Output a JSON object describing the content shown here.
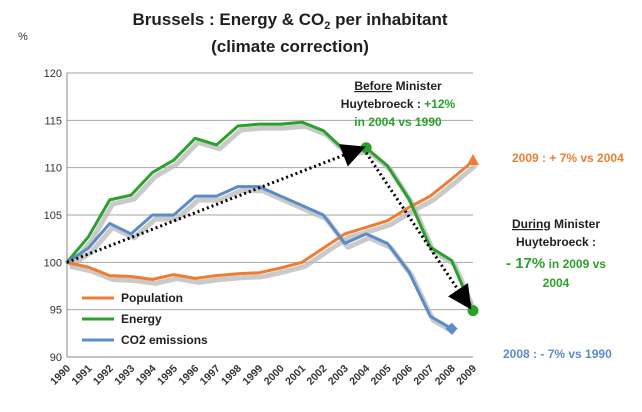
{
  "chart_data": {
    "type": "line",
    "title_line1": "Brussels : Energy & CO",
    "title_sub": "2",
    "title_line1_end": " per inhabitant",
    "title_line2": "(climate correction)",
    "ylabel": "%",
    "ylim": [
      90,
      120
    ],
    "yticks": [
      90,
      95,
      100,
      105,
      110,
      115,
      120
    ],
    "grid": true,
    "legend_position": "bottom-left",
    "categories": [
      "1990",
      "1991",
      "1992",
      "1993",
      "1994",
      "1995",
      "1996",
      "1997",
      "1998",
      "1999",
      "2000",
      "2001",
      "2002",
      "2003",
      "2004",
      "2005",
      "2006",
      "2007",
      "2008",
      "2009"
    ],
    "series": [
      {
        "name": "Population",
        "color": "#ED7D31",
        "values": [
          100,
          99.5,
          98.6,
          98.5,
          98.2,
          98.7,
          98.3,
          98.6,
          98.8,
          98.9,
          99.4,
          100,
          101.5,
          103,
          103.7,
          104.4,
          105.8,
          107,
          108.8,
          110.7
        ]
      },
      {
        "name": "Energy",
        "color": "#2CA02C",
        "values": [
          100,
          102.7,
          106.6,
          107.1,
          109.5,
          110.8,
          113.1,
          112.4,
          114.4,
          114.6,
          114.6,
          114.8,
          113.9,
          111.8,
          112.1,
          110.2,
          106.7,
          101.6,
          100.2,
          94.9
        ]
      },
      {
        "name": "CO2 emissions",
        "color": "#5B8CC8",
        "values": [
          100,
          101.5,
          104.1,
          103,
          105,
          105,
          107,
          107,
          108,
          108,
          107,
          106,
          105,
          102,
          103,
          102,
          99,
          94.3,
          93,
          null
        ]
      }
    ],
    "annotations": {
      "before_line1_underlined": "Before",
      "before_line1_rest": " Minister",
      "before_line2_black": "Huytebroeck : ",
      "before_line2_green": "+12%",
      "before_line3": "in 2004 vs 1990",
      "pop_note": "2009 : + 7% vs 2004",
      "during_line1_underlined": "During",
      "during_line1_rest": " Minister",
      "during_line2": "Huytebroeck :",
      "during_line3_big": "- 17%",
      "during_line3_rest": " in 2009 vs",
      "during_line4": "2004",
      "co2_note": "2008 : - 7% vs 1990"
    },
    "colors": {
      "green_text": "#2CA02C",
      "orange_text": "#ED7D31",
      "blue_text": "#5B8CC8",
      "arrow": "#000000"
    }
  }
}
